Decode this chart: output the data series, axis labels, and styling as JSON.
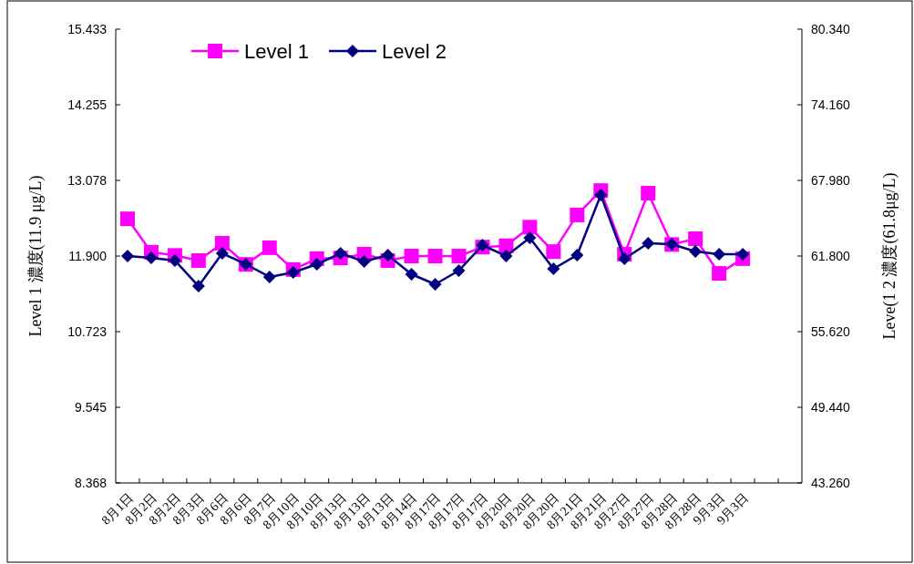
{
  "chart_data": {
    "type": "line",
    "xlabel": null,
    "ylabel": "Level 1 濃度(11.9 μg/L)",
    "y2label": "Leve(1 2 濃度(61.8μg/L)",
    "categories": [
      "8月1日",
      "8月2日",
      "8月2日",
      "8月3日",
      "8月6日",
      "8月6日",
      "8月7日",
      "8月10日",
      "8月10日",
      "8月13日",
      "8月13日",
      "8月13日",
      "8月14日",
      "8月17日",
      "8月17日",
      "8月17日",
      "8月20日",
      "8月20日",
      "8月20日",
      "8月21日",
      "8月21日",
      "8月27日",
      "8月27日",
      "8月28日",
      "8月28日",
      "9月3日",
      "9月3日",
      null,
      null
    ],
    "series": [
      {
        "name": "Level 1",
        "color": "#ff00ff",
        "marker": "square",
        "values": [
          12.48,
          11.96,
          11.91,
          11.83,
          12.1,
          11.77,
          12.03,
          11.69,
          11.86,
          11.87,
          11.93,
          11.83,
          11.9,
          11.9,
          11.9,
          12.04,
          12.06,
          12.35,
          11.97,
          12.54,
          12.92,
          11.93,
          12.88,
          12.08,
          12.17,
          11.63,
          11.86,
          null,
          null
        ]
      },
      {
        "name": "Level 2",
        "color": "#000080",
        "marker": "diamond",
        "axis": "y2",
        "values": [
          61.8,
          61.65,
          61.43,
          59.34,
          62.02,
          61.13,
          60.09,
          60.46,
          61.13,
          62.02,
          61.35,
          61.88,
          60.31,
          59.49,
          60.61,
          62.69,
          61.8,
          63.29,
          60.76,
          61.88,
          66.79,
          61.58,
          62.84,
          62.77,
          62.17,
          61.95,
          61.95,
          null,
          null
        ]
      }
    ],
    "ylim": [
      8.368,
      15.433
    ],
    "yticks": [
      8.368,
      9.545,
      10.723,
      {
        "value": 11.9,
        "label": "11.900"
      },
      13.078,
      14.255,
      15.433
    ],
    "y2lim": [
      43.26,
      80.34
    ],
    "y2ticks": [
      {
        "value": 43.26,
        "label": "43.260"
      },
      {
        "value": 49.44,
        "label": "49.440"
      },
      {
        "value": 55.62,
        "label": "55.620"
      },
      {
        "value": 61.8,
        "label": "61.800"
      },
      {
        "value": 67.98,
        "label": "67.980"
      },
      {
        "value": 74.16,
        "label": "74.160"
      },
      {
        "value": 80.34,
        "label": "80.340"
      }
    ],
    "grid": false,
    "legend": "top left",
    "line_style": "solid"
  }
}
